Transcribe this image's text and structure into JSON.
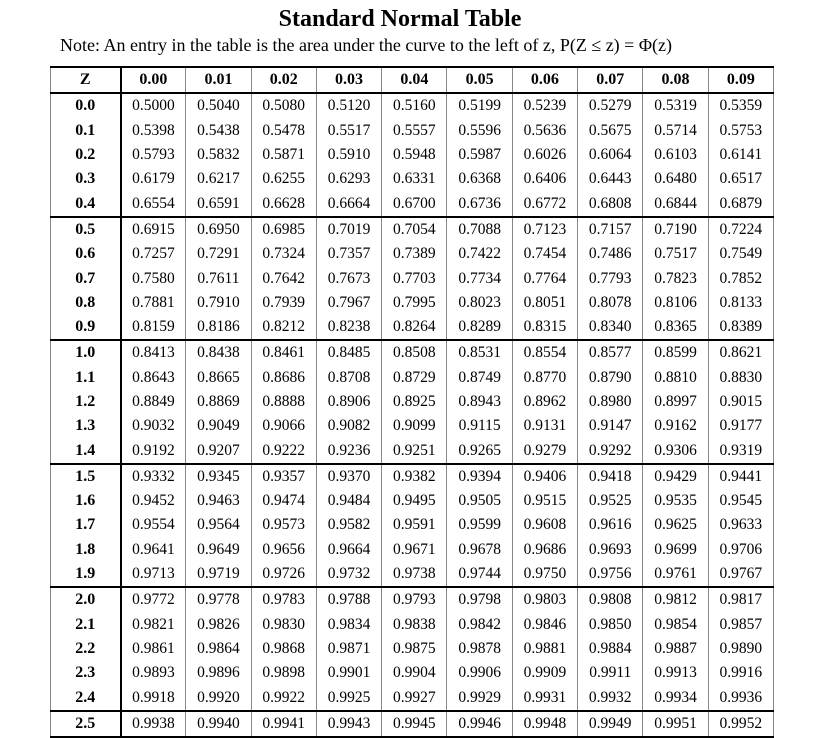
{
  "title": "Standard Normal Table",
  "note": "Note: An entry in the table is the area under the curve to the left of z, P(Z ≤ z) = Φ(z)",
  "table": {
    "z_header": "Z",
    "columns": [
      "0.00",
      "0.01",
      "0.02",
      "0.03",
      "0.04",
      "0.05",
      "0.06",
      "0.07",
      "0.08",
      "0.09"
    ],
    "rows": [
      {
        "z": "0.0",
        "values": [
          "0.5000",
          "0.5040",
          "0.5080",
          "0.5120",
          "0.5160",
          "0.5199",
          "0.5239",
          "0.5279",
          "0.5319",
          "0.5359"
        ]
      },
      {
        "z": "0.1",
        "values": [
          "0.5398",
          "0.5438",
          "0.5478",
          "0.5517",
          "0.5557",
          "0.5596",
          "0.5636",
          "0.5675",
          "0.5714",
          "0.5753"
        ]
      },
      {
        "z": "0.2",
        "values": [
          "0.5793",
          "0.5832",
          "0.5871",
          "0.5910",
          "0.5948",
          "0.5987",
          "0.6026",
          "0.6064",
          "0.6103",
          "0.6141"
        ]
      },
      {
        "z": "0.3",
        "values": [
          "0.6179",
          "0.6217",
          "0.6255",
          "0.6293",
          "0.6331",
          "0.6368",
          "0.6406",
          "0.6443",
          "0.6480",
          "0.6517"
        ]
      },
      {
        "z": "0.4",
        "values": [
          "0.6554",
          "0.6591",
          "0.6628",
          "0.6664",
          "0.6700",
          "0.6736",
          "0.6772",
          "0.6808",
          "0.6844",
          "0.6879"
        ]
      },
      {
        "z": "0.5",
        "values": [
          "0.6915",
          "0.6950",
          "0.6985",
          "0.7019",
          "0.7054",
          "0.7088",
          "0.7123",
          "0.7157",
          "0.7190",
          "0.7224"
        ]
      },
      {
        "z": "0.6",
        "values": [
          "0.7257",
          "0.7291",
          "0.7324",
          "0.7357",
          "0.7389",
          "0.7422",
          "0.7454",
          "0.7486",
          "0.7517",
          "0.7549"
        ]
      },
      {
        "z": "0.7",
        "values": [
          "0.7580",
          "0.7611",
          "0.7642",
          "0.7673",
          "0.7703",
          "0.7734",
          "0.7764",
          "0.7793",
          "0.7823",
          "0.7852"
        ]
      },
      {
        "z": "0.8",
        "values": [
          "0.7881",
          "0.7910",
          "0.7939",
          "0.7967",
          "0.7995",
          "0.8023",
          "0.8051",
          "0.8078",
          "0.8106",
          "0.8133"
        ]
      },
      {
        "z": "0.9",
        "values": [
          "0.8159",
          "0.8186",
          "0.8212",
          "0.8238",
          "0.8264",
          "0.8289",
          "0.8315",
          "0.8340",
          "0.8365",
          "0.8389"
        ]
      },
      {
        "z": "1.0",
        "values": [
          "0.8413",
          "0.8438",
          "0.8461",
          "0.8485",
          "0.8508",
          "0.8531",
          "0.8554",
          "0.8577",
          "0.8599",
          "0.8621"
        ]
      },
      {
        "z": "1.1",
        "values": [
          "0.8643",
          "0.8665",
          "0.8686",
          "0.8708",
          "0.8729",
          "0.8749",
          "0.8770",
          "0.8790",
          "0.8810",
          "0.8830"
        ]
      },
      {
        "z": "1.2",
        "values": [
          "0.8849",
          "0.8869",
          "0.8888",
          "0.8906",
          "0.8925",
          "0.8943",
          "0.8962",
          "0.8980",
          "0.8997",
          "0.9015"
        ]
      },
      {
        "z": "1.3",
        "values": [
          "0.9032",
          "0.9049",
          "0.9066",
          "0.9082",
          "0.9099",
          "0.9115",
          "0.9131",
          "0.9147",
          "0.9162",
          "0.9177"
        ]
      },
      {
        "z": "1.4",
        "values": [
          "0.9192",
          "0.9207",
          "0.9222",
          "0.9236",
          "0.9251",
          "0.9265",
          "0.9279",
          "0.9292",
          "0.9306",
          "0.9319"
        ]
      },
      {
        "z": "1.5",
        "values": [
          "0.9332",
          "0.9345",
          "0.9357",
          "0.9370",
          "0.9382",
          "0.9394",
          "0.9406",
          "0.9418",
          "0.9429",
          "0.9441"
        ]
      },
      {
        "z": "1.6",
        "values": [
          "0.9452",
          "0.9463",
          "0.9474",
          "0.9484",
          "0.9495",
          "0.9505",
          "0.9515",
          "0.9525",
          "0.9535",
          "0.9545"
        ]
      },
      {
        "z": "1.7",
        "values": [
          "0.9554",
          "0.9564",
          "0.9573",
          "0.9582",
          "0.9591",
          "0.9599",
          "0.9608",
          "0.9616",
          "0.9625",
          "0.9633"
        ]
      },
      {
        "z": "1.8",
        "values": [
          "0.9641",
          "0.9649",
          "0.9656",
          "0.9664",
          "0.9671",
          "0.9678",
          "0.9686",
          "0.9693",
          "0.9699",
          "0.9706"
        ]
      },
      {
        "z": "1.9",
        "values": [
          "0.9713",
          "0.9719",
          "0.9726",
          "0.9732",
          "0.9738",
          "0.9744",
          "0.9750",
          "0.9756",
          "0.9761",
          "0.9767"
        ]
      },
      {
        "z": "2.0",
        "values": [
          "0.9772",
          "0.9778",
          "0.9783",
          "0.9788",
          "0.9793",
          "0.9798",
          "0.9803",
          "0.9808",
          "0.9812",
          "0.9817"
        ]
      },
      {
        "z": "2.1",
        "values": [
          "0.9821",
          "0.9826",
          "0.9830",
          "0.9834",
          "0.9838",
          "0.9842",
          "0.9846",
          "0.9850",
          "0.9854",
          "0.9857"
        ]
      },
      {
        "z": "2.2",
        "values": [
          "0.9861",
          "0.9864",
          "0.9868",
          "0.9871",
          "0.9875",
          "0.9878",
          "0.9881",
          "0.9884",
          "0.9887",
          "0.9890"
        ]
      },
      {
        "z": "2.3",
        "values": [
          "0.9893",
          "0.9896",
          "0.9898",
          "0.9901",
          "0.9904",
          "0.9906",
          "0.9909",
          "0.9911",
          "0.9913",
          "0.9916"
        ]
      },
      {
        "z": "2.4",
        "values": [
          "0.9918",
          "0.9920",
          "0.9922",
          "0.9925",
          "0.9927",
          "0.9929",
          "0.9931",
          "0.9932",
          "0.9934",
          "0.9936"
        ]
      },
      {
        "z": "2.5",
        "values": [
          "0.9938",
          "0.9940",
          "0.9941",
          "0.9943",
          "0.9945",
          "0.9946",
          "0.9948",
          "0.9949",
          "0.9951",
          "0.9952"
        ]
      }
    ]
  }
}
